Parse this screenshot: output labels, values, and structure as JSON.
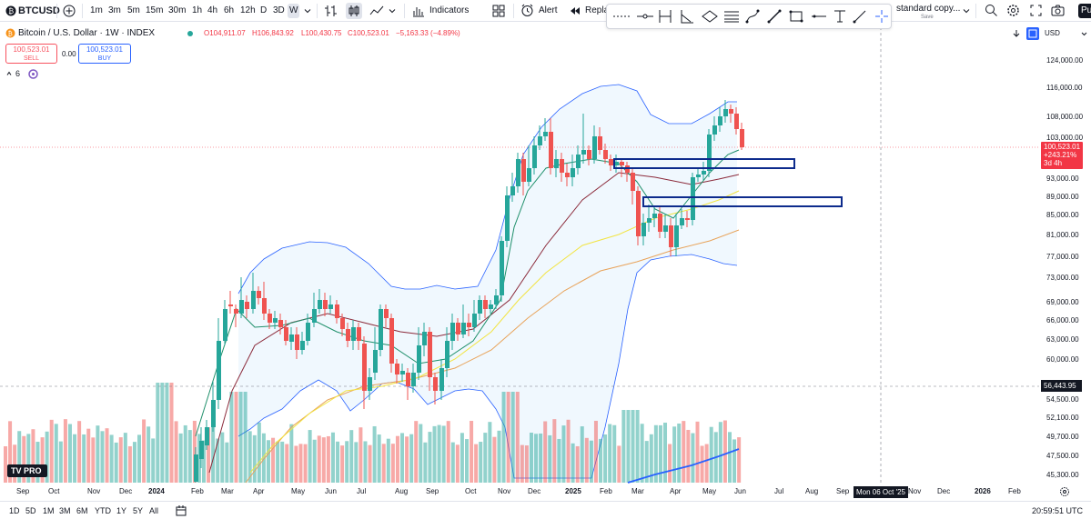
{
  "toolbar": {
    "symbol": "BTCUSD",
    "intervals": [
      "1m",
      "3m",
      "5m",
      "15m",
      "30m",
      "1h",
      "4h",
      "6h",
      "12h",
      "D",
      "3D",
      "W"
    ],
    "active_interval": "W",
    "indicators_label": "Indicators",
    "alert_label": "Alert",
    "replay_label": "Repla",
    "layout_name": "standard copy...",
    "save_label": "Save",
    "publish_label": "Pu"
  },
  "legend": {
    "title": "Bitcoin / U.S. Dollar · 1W · INDEX",
    "open": "O104,911.07",
    "high": "H106,843.92",
    "low": "L100,430.75",
    "close": "C100,523.01",
    "change": "−5,163.33 (−4.89%)",
    "sell_price": "100,523.01",
    "sell_label": "SELL",
    "spread": "0.00",
    "buy_price": "100,523.01",
    "buy_label": "BUY",
    "indicator_count": "6"
  },
  "price_scale": {
    "currency": "USD",
    "ticks": [
      "124,000.00",
      "116,000.00",
      "108,000.00",
      "103,000.00",
      "93,000.00",
      "89,000.00",
      "85,000.00",
      "81,000.00",
      "77,000.00",
      "73,000.00",
      "69,000.00",
      "66,000.00",
      "63,000.00",
      "60,000.00",
      "54,500.00",
      "52,100.00",
      "49,700.00",
      "47,500.00",
      "45,300.00"
    ],
    "current_price": "100,523.01",
    "current_change": "+243.21%",
    "current_countdown": "3d 4h",
    "crosshair_price": "56,443.95"
  },
  "time_axis": {
    "ticks": [
      "Sep",
      "Oct",
      "Nov",
      "Dec",
      "2024",
      "Feb",
      "Mar",
      "Apr",
      "May",
      "Jun",
      "Jul",
      "Aug",
      "Sep",
      "Oct",
      "Nov",
      "Dec",
      "2025",
      "Feb",
      "Mar",
      "Apr",
      "May",
      "Jun",
      "Jul",
      "Aug",
      "Sep",
      "Nov",
      "Dec",
      "2026",
      "Feb"
    ],
    "crosshair_date": "Mon 06 Oct '25"
  },
  "bottom": {
    "ranges": [
      "1D",
      "5D",
      "1M",
      "3M",
      "6M",
      "YTD",
      "1Y",
      "5Y",
      "All"
    ],
    "clock": "20:59:51 UTC"
  },
  "branding": {
    "logo_text": "TV PRO"
  },
  "colors": {
    "up": "#26a69a",
    "down": "#ef5350",
    "band_fill": "#e3f2fd",
    "band_line": "#2962ff",
    "zone": "#0d2b8c"
  }
}
